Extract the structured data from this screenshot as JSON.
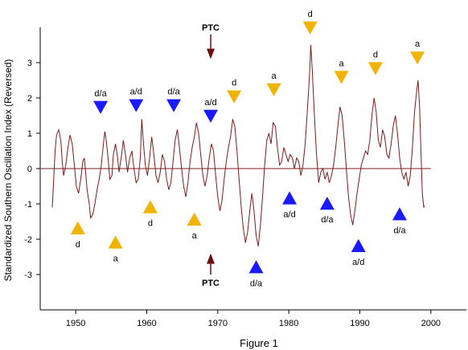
{
  "chart_data": {
    "type": "line",
    "ylabel": "Standardized Southern Oscillation Index  (Reversed)",
    "caption": "Figure 1",
    "xlim": [
      1945,
      2005
    ],
    "ylim": [
      -4,
      4
    ],
    "x_ticks": [
      "1950",
      "1960",
      "1970",
      "1980",
      "1990",
      "2000"
    ],
    "y_ticks": [
      "3",
      "2",
      "1",
      "0",
      "-1",
      "-2",
      "-3"
    ],
    "baseline": 0,
    "colors": {
      "series": "#7a1c1c",
      "yellow": "#f0b400",
      "blue": "#1a1aff",
      "ptc": "#6b0f0f"
    },
    "series": [
      {
        "values": [
          [
            1946.7,
            -1.1
          ],
          [
            1946.9,
            -0.3
          ],
          [
            1947.1,
            0.5
          ],
          [
            1947.3,
            0.95
          ],
          [
            1947.6,
            1.1
          ],
          [
            1947.9,
            0.8
          ],
          [
            1948.1,
            0.2
          ],
          [
            1948.3,
            -0.2
          ],
          [
            1948.6,
            0.1
          ],
          [
            1948.9,
            0.6
          ],
          [
            1949.2,
            0.95
          ],
          [
            1949.5,
            0.7
          ],
          [
            1949.8,
            0.1
          ],
          [
            1950.1,
            -0.5
          ],
          [
            1950.4,
            -0.7
          ],
          [
            1950.7,
            -0.3
          ],
          [
            1951.0,
            0.2
          ],
          [
            1951.2,
            0.3
          ],
          [
            1951.4,
            -0.1
          ],
          [
            1951.6,
            -0.6
          ],
          [
            1951.9,
            -1.0
          ],
          [
            1952.1,
            -1.4
          ],
          [
            1952.4,
            -1.3
          ],
          [
            1952.7,
            -1.0
          ],
          [
            1953.0,
            -0.6
          ],
          [
            1953.3,
            -0.3
          ],
          [
            1953.6,
            0.1
          ],
          [
            1953.9,
            0.7
          ],
          [
            1954.1,
            1.05
          ],
          [
            1954.3,
            0.8
          ],
          [
            1954.6,
            0.2
          ],
          [
            1954.8,
            -0.3
          ],
          [
            1955.1,
            -0.2
          ],
          [
            1955.3,
            0.4
          ],
          [
            1955.6,
            0.7
          ],
          [
            1955.9,
            0.3
          ],
          [
            1956.1,
            -0.1
          ],
          [
            1956.4,
            0.3
          ],
          [
            1956.7,
            0.8
          ],
          [
            1957.0,
            0.4
          ],
          [
            1957.3,
            -0.1
          ],
          [
            1957.6,
            0.3
          ],
          [
            1957.9,
            0.5
          ],
          [
            1958.2,
            0.0
          ],
          [
            1958.5,
            -0.4
          ],
          [
            1958.8,
            -0.3
          ],
          [
            1959.1,
            0.3
          ],
          [
            1959.3,
            1.4
          ],
          [
            1959.5,
            0.8
          ],
          [
            1959.8,
            0.1
          ],
          [
            1960.1,
            -0.2
          ],
          [
            1960.4,
            0.3
          ],
          [
            1960.7,
            0.9
          ],
          [
            1961.0,
            0.4
          ],
          [
            1961.3,
            -0.2
          ],
          [
            1961.6,
            -0.4
          ],
          [
            1961.9,
            -0.1
          ],
          [
            1962.2,
            0.4
          ],
          [
            1962.5,
            0.2
          ],
          [
            1962.8,
            -0.3
          ],
          [
            1963.1,
            -0.6
          ],
          [
            1963.4,
            -0.4
          ],
          [
            1963.7,
            0.2
          ],
          [
            1964.0,
            0.8
          ],
          [
            1964.3,
            1.1
          ],
          [
            1964.6,
            0.6
          ],
          [
            1964.9,
            0.0
          ],
          [
            1965.2,
            -0.5
          ],
          [
            1965.5,
            -0.8
          ],
          [
            1965.8,
            -0.4
          ],
          [
            1966.1,
            0.2
          ],
          [
            1966.4,
            0.6
          ],
          [
            1966.7,
            0.9
          ],
          [
            1967.0,
            1.3
          ],
          [
            1967.3,
            1.0
          ],
          [
            1967.6,
            0.4
          ],
          [
            1967.9,
            -0.2
          ],
          [
            1968.2,
            -0.5
          ],
          [
            1968.5,
            -0.2
          ],
          [
            1968.8,
            0.3
          ],
          [
            1969.1,
            0.7
          ],
          [
            1969.4,
            0.5
          ],
          [
            1969.7,
            -0.2
          ],
          [
            1970.0,
            -0.8
          ],
          [
            1970.3,
            -1.2
          ],
          [
            1970.6,
            -0.9
          ],
          [
            1970.9,
            -0.3
          ],
          [
            1971.2,
            0.2
          ],
          [
            1971.5,
            0.6
          ],
          [
            1971.8,
            0.9
          ],
          [
            1972.1,
            1.4
          ],
          [
            1972.4,
            1.2
          ],
          [
            1972.7,
            0.5
          ],
          [
            1973.0,
            -0.3
          ],
          [
            1973.3,
            -1.1
          ],
          [
            1973.6,
            -1.7
          ],
          [
            1973.9,
            -2.1
          ],
          [
            1974.2,
            -1.8
          ],
          [
            1974.5,
            -1.2
          ],
          [
            1974.8,
            -0.7
          ],
          [
            1975.1,
            -1.2
          ],
          [
            1975.4,
            -1.9
          ],
          [
            1975.7,
            -2.2
          ],
          [
            1976.0,
            -1.6
          ],
          [
            1976.3,
            -0.8
          ],
          [
            1976.6,
            0.1
          ],
          [
            1976.9,
            0.8
          ],
          [
            1977.2,
            1.0
          ],
          [
            1977.5,
            0.7
          ],
          [
            1977.8,
            1.3
          ],
          [
            1978.1,
            1.2
          ],
          [
            1978.4,
            0.6
          ],
          [
            1978.7,
            0.1
          ],
          [
            1979.0,
            0.2
          ],
          [
            1979.3,
            0.6
          ],
          [
            1979.6,
            0.4
          ],
          [
            1979.9,
            0.2
          ],
          [
            1980.2,
            0.4
          ],
          [
            1980.5,
            0.3
          ],
          [
            1980.8,
            0.0
          ],
          [
            1981.1,
            0.3
          ],
          [
            1981.4,
            0.2
          ],
          [
            1981.7,
            -0.2
          ],
          [
            1982.0,
            0.1
          ],
          [
            1982.3,
            0.7
          ],
          [
            1982.6,
            1.6
          ],
          [
            1982.9,
            2.6
          ],
          [
            1983.1,
            3.5
          ],
          [
            1983.3,
            2.8
          ],
          [
            1983.6,
            1.5
          ],
          [
            1983.9,
            0.4
          ],
          [
            1984.2,
            -0.4
          ],
          [
            1984.5,
            -0.1
          ],
          [
            1984.8,
            0.0
          ],
          [
            1985.1,
            -0.3
          ],
          [
            1985.4,
            -0.1
          ],
          [
            1985.7,
            -0.4
          ],
          [
            1986.0,
            -0.2
          ],
          [
            1986.3,
            0.1
          ],
          [
            1986.6,
            0.6
          ],
          [
            1986.9,
            1.2
          ],
          [
            1987.2,
            1.75
          ],
          [
            1987.5,
            1.5
          ],
          [
            1987.8,
            0.8
          ],
          [
            1988.1,
            0.0
          ],
          [
            1988.4,
            -0.8
          ],
          [
            1988.7,
            -1.3
          ],
          [
            1989.0,
            -1.6
          ],
          [
            1989.3,
            -1.2
          ],
          [
            1989.6,
            -0.7
          ],
          [
            1989.9,
            -0.3
          ],
          [
            1990.2,
            0.1
          ],
          [
            1990.5,
            0.3
          ],
          [
            1990.8,
            0.5
          ],
          [
            1991.1,
            0.4
          ],
          [
            1991.4,
            0.8
          ],
          [
            1991.7,
            1.5
          ],
          [
            1992.0,
            2.0
          ],
          [
            1992.3,
            1.6
          ],
          [
            1992.6,
            0.8
          ],
          [
            1992.9,
            0.6
          ],
          [
            1993.2,
            1.1
          ],
          [
            1993.5,
            0.9
          ],
          [
            1993.8,
            0.4
          ],
          [
            1994.1,
            0.3
          ],
          [
            1994.4,
            0.7
          ],
          [
            1994.7,
            1.2
          ],
          [
            1995.0,
            1.5
          ],
          [
            1995.3,
            1.0
          ],
          [
            1995.6,
            0.3
          ],
          [
            1995.9,
            -0.1
          ],
          [
            1996.2,
            -0.3
          ],
          [
            1996.5,
            -0.1
          ],
          [
            1996.8,
            -0.5
          ],
          [
            1997.1,
            -0.2
          ],
          [
            1997.4,
            0.6
          ],
          [
            1997.7,
            1.6
          ],
          [
            1998.0,
            2.2
          ],
          [
            1998.2,
            2.5
          ],
          [
            1998.4,
            1.8
          ],
          [
            1998.6,
            0.5
          ],
          [
            1998.8,
            -0.7
          ],
          [
            1999.0,
            -1.1
          ],
          [
            1999.1,
            -1.05
          ]
        ]
      }
    ],
    "markers": [
      {
        "x": 1950.3,
        "y": -1.7,
        "dir": "up",
        "color": "yellow",
        "label": "d",
        "label_pos": "below"
      },
      {
        "x": 1955.6,
        "y": -2.1,
        "dir": "up",
        "color": "yellow",
        "label": "a",
        "label_pos": "below"
      },
      {
        "x": 1960.5,
        "y": -1.1,
        "dir": "up",
        "color": "yellow",
        "label": "d",
        "label_pos": "below"
      },
      {
        "x": 1966.7,
        "y": -1.45,
        "dir": "up",
        "color": "yellow",
        "label": "a",
        "label_pos": "below"
      },
      {
        "x": 1953.5,
        "y": 1.75,
        "dir": "down",
        "color": "blue",
        "label": "d/a",
        "label_pos": "above"
      },
      {
        "x": 1958.5,
        "y": 1.8,
        "dir": "down",
        "color": "blue",
        "label": "a/d",
        "label_pos": "above"
      },
      {
        "x": 1963.8,
        "y": 1.8,
        "dir": "down",
        "color": "blue",
        "label": "d/a",
        "label_pos": "above"
      },
      {
        "x": 1969.0,
        "y": 1.5,
        "dir": "down",
        "color": "blue",
        "label": "a/d",
        "label_pos": "above"
      },
      {
        "x": 1972.3,
        "y": 2.05,
        "dir": "down",
        "color": "yellow",
        "label": "d",
        "label_pos": "above"
      },
      {
        "x": 1977.9,
        "y": 2.25,
        "dir": "down",
        "color": "yellow",
        "label": "a",
        "label_pos": "above"
      },
      {
        "x": 1983.0,
        "y": 4.0,
        "dir": "down",
        "color": "yellow",
        "label": "d",
        "label_pos": "above"
      },
      {
        "x": 1987.4,
        "y": 2.6,
        "dir": "down",
        "color": "yellow",
        "label": "a",
        "label_pos": "above"
      },
      {
        "x": 1992.2,
        "y": 2.85,
        "dir": "down",
        "color": "yellow",
        "label": "d",
        "label_pos": "above"
      },
      {
        "x": 1998.1,
        "y": 3.15,
        "dir": "down",
        "color": "yellow",
        "label": "a",
        "label_pos": "above"
      },
      {
        "x": 1975.4,
        "y": -2.8,
        "dir": "up",
        "color": "blue",
        "label": "d/a",
        "label_pos": "below"
      },
      {
        "x": 1980.1,
        "y": -0.85,
        "dir": "up",
        "color": "blue",
        "label": "a/d",
        "label_pos": "below"
      },
      {
        "x": 1985.4,
        "y": -1.0,
        "dir": "up",
        "color": "blue",
        "label": "d/a",
        "label_pos": "below"
      },
      {
        "x": 1989.8,
        "y": -2.2,
        "dir": "up",
        "color": "blue",
        "label": "a/d",
        "label_pos": "below"
      },
      {
        "x": 1995.6,
        "y": -1.3,
        "dir": "up",
        "color": "blue",
        "label": "d/a",
        "label_pos": "below"
      }
    ],
    "ptc_arrows": [
      {
        "x": 1969.0,
        "from_y": 3.8,
        "to_y": 3.1,
        "label": "PTC",
        "label_pos": "above"
      },
      {
        "x": 1969.0,
        "from_y": -3.0,
        "to_y": -2.4,
        "label": "PTC",
        "label_pos": "below"
      }
    ]
  }
}
